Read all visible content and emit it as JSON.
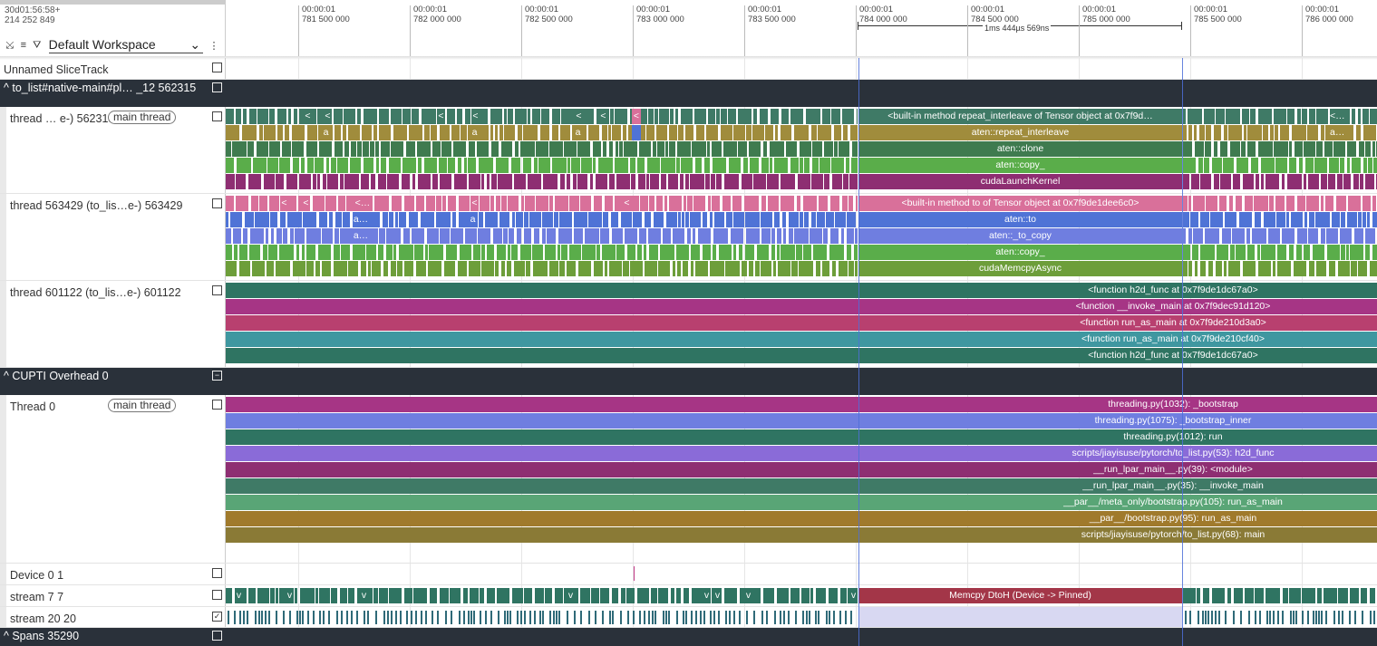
{
  "header": {
    "timestamp_line1": "30d01:56:58+",
    "timestamp_line2": "214 252 849",
    "workspace": "Default Workspace",
    "icons": [
      "collapse-icon",
      "sort-icon",
      "filter-icon",
      "chevron-down-icon",
      "more-icon"
    ],
    "ticks": [
      {
        "t": "00:00:01",
        "v": "781 500 000"
      },
      {
        "t": "00:00:01",
        "v": "782 000 000"
      },
      {
        "t": "00:00:01",
        "v": "782 500 000"
      },
      {
        "t": "00:00:01",
        "v": "783 000 000"
      },
      {
        "t": "00:00:01",
        "v": "783 500 000"
      },
      {
        "t": "00:00:01",
        "v": "784 000 000"
      },
      {
        "t": "00:00:01",
        "v": "784 500 000"
      },
      {
        "t": "00:00:01",
        "v": "785 000 000"
      },
      {
        "t": "00:00:01",
        "v": "785 500 000"
      },
      {
        "t": "00:00:01",
        "v": "786 000 000"
      }
    ],
    "span_label": "1ms 444µs 569ns"
  },
  "tracks": {
    "unnamed": "Unnamed SliceTrack",
    "group1": "to_list#native-main#pl… _12 562315",
    "thread1": "thread … e-) 562315",
    "main_thread": "main thread",
    "thread2": "thread 563429 (to_lis…e-) 563429",
    "thread3": "thread 601122 (to_lis…e-) 601122",
    "group2": "CUPTI Overhead 0",
    "thread0": "Thread 0",
    "device": "Device 0 1",
    "stream7": "stream 7 7",
    "stream20": "stream 20 20",
    "spans": "Spans 35290"
  },
  "slices": {
    "t1": [
      "<built-in method repeat_interleave of Tensor object at 0x7f9d…",
      "aten::repeat_interleave",
      "aten::clone",
      "aten::copy_",
      "cudaLaunchKernel"
    ],
    "t1_right": "<b…",
    "t1_right2": "at…",
    "t2": [
      "<built-in method to of Tensor object at 0x7f9de1dee6c0>",
      "aten::to",
      "aten::_to_copy",
      "aten::copy_",
      "cudaMemcpyAsync"
    ],
    "t3": [
      "<function h2d_func at 0x7f9de1dc67a0>",
      "<function __invoke_main at 0x7f9dec91d120>",
      "<function run_as_main at 0x7f9de210d3a0>",
      "<function run_as_main at 0x7f9de210cf40>",
      "<function h2d_func at 0x7f9de1dc67a0>"
    ],
    "t0": [
      "threading.py(1032): _bootstrap",
      "threading.py(1075): _bootstrap_inner",
      "threading.py(1012): run",
      "scripts/jiayisuse/pytorch/to_list.py(53): h2d_func",
      "__run_lpar_main__.py(39): <module>",
      "__run_lpar_main__.py(35): __invoke_main",
      "__par__/meta_only/bootstrap.py(105): run_as_main",
      "__par__/bootstrap.py(95): run_as_main",
      "scripts/jiayisuse/pytorch/to_list.py(68): main"
    ],
    "memcpy": "Memcpy DtoH (Device -> Pinned)",
    "small_a": "a",
    "small_lt": "<",
    "small_v": "v",
    "small_lt_dots": "<…",
    "small_a_dots": "a…"
  },
  "colors": {
    "teal": "#3f7a66",
    "olive": "#a08c3c",
    "green_dark": "#3f7b4f",
    "green": "#5aad4a",
    "purple_dark": "#8e2e72",
    "pink": "#d9709a",
    "blue": "#4f73d6",
    "blue2": "#6f7ee0",
    "green2": "#6d9e3a",
    "teal2": "#2f7462",
    "magenta": "#a63585",
    "rose": "#b8406f",
    "cyan": "#3f97a0",
    "violet": "#8a6bd8",
    "sea": "#59a576",
    "brown": "#a07a2c",
    "khaki": "#8a7a36",
    "memcpy": "#a33648"
  }
}
